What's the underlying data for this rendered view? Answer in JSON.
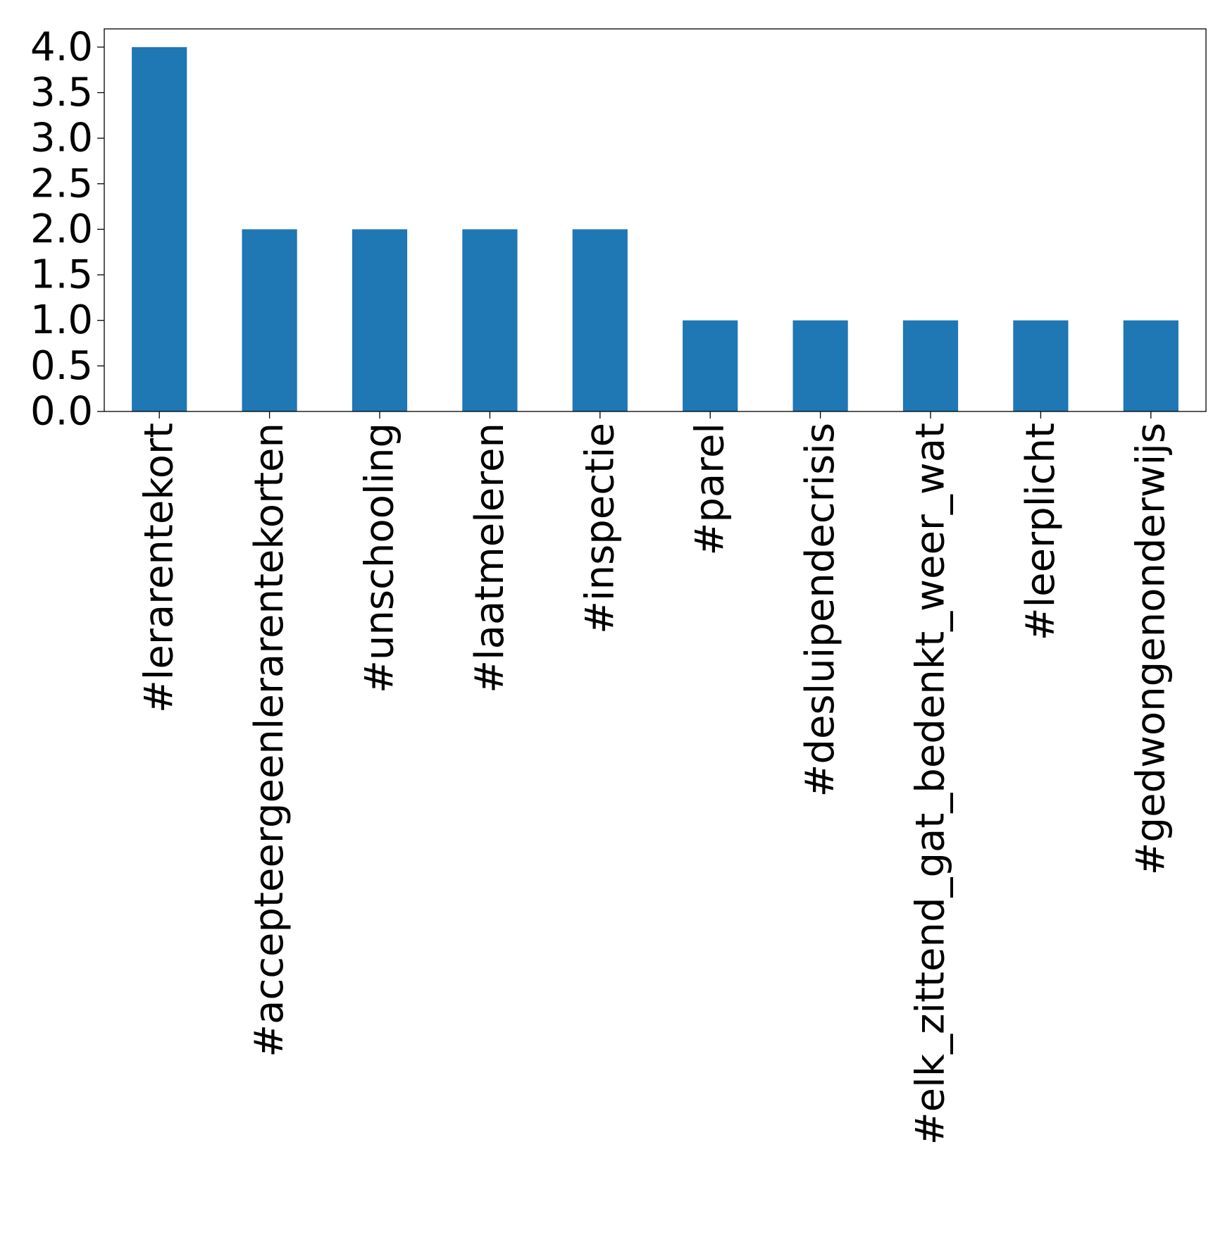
{
  "chart_data": {
    "type": "bar",
    "title": "",
    "xlabel": "",
    "ylabel": "",
    "categories": [
      "#lerarentekort",
      "#accepteergeenlerarentekorten",
      "#unschooling",
      "#laatmeleren",
      "#inspectie",
      "#parel",
      "#desluipendecrisis",
      "#elk_zittend_gat_bedenkt_weer_wat",
      "#leerplicht",
      "#gedwongenonderwijs"
    ],
    "values": [
      4,
      2,
      2,
      2,
      2,
      1,
      1,
      1,
      1,
      1
    ],
    "ylim": [
      0,
      4.2
    ],
    "yticks": [
      "0.0",
      "0.5",
      "1.0",
      "1.5",
      "2.0",
      "2.5",
      "3.0",
      "3.5",
      "4.0"
    ],
    "bar_color": "#1f77b4",
    "grid": false,
    "legend": "none"
  }
}
